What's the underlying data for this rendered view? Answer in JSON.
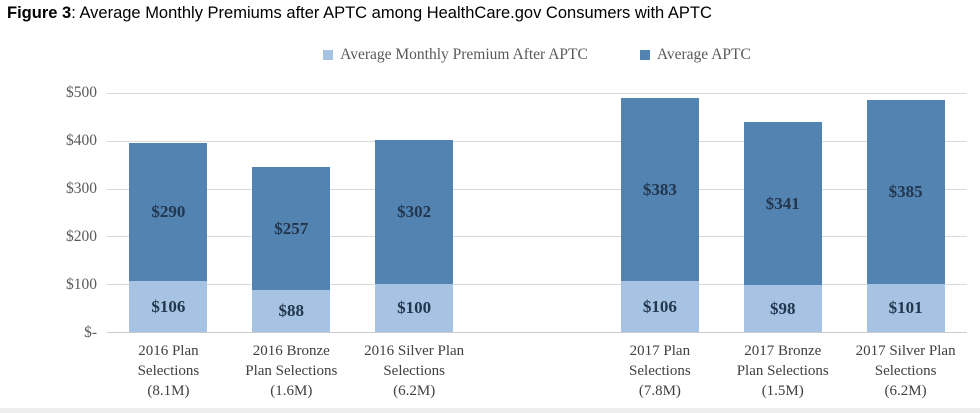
{
  "figure": {
    "label": "Figure 3",
    "title": ": Average Monthly Premiums after APTC among HealthCare.gov Consumers with APTC"
  },
  "colors": {
    "premium_after_aptc": "#a6c3e3",
    "average_aptc": "#5283b1",
    "bar_value_text": "#22364e",
    "axis_text": "#595959",
    "category_text": "#404040",
    "gridline": "#d9d9d9"
  },
  "chart_data": {
    "type": "bar",
    "stacked": true,
    "title": "Figure 3: Average Monthly Premiums after APTC among HealthCare.gov Consumers with APTC",
    "xlabel": "",
    "ylabel": "",
    "ylim": [
      0,
      500
    ],
    "grid": true,
    "legend_position": "top",
    "currency_prefix": "$",
    "gap_before_index": 3,
    "categories": [
      {
        "name": "2016 Plan Selections (8.1M)",
        "lines": [
          "2016 Plan",
          "Selections",
          "(8.1M)"
        ]
      },
      {
        "name": "2016 Bronze Plan Selections (1.6M)",
        "lines": [
          "2016 Bronze",
          "Plan Selections",
          "(1.6M)"
        ]
      },
      {
        "name": "2016 Silver Plan Selections (6.2M)",
        "lines": [
          "2016 Silver Plan",
          "Selections",
          "(6.2M)"
        ]
      },
      {
        "name": "2017 Plan Selections (7.8M)",
        "lines": [
          "2017 Plan",
          "Selections",
          "(7.8M)"
        ]
      },
      {
        "name": "2017 Bronze Plan Selections (1.5M)",
        "lines": [
          "2017 Bronze",
          "Plan Selections",
          "(1.5M)"
        ]
      },
      {
        "name": "2017 Silver Plan Selections (6.2M)",
        "lines": [
          "2017 Silver Plan",
          "Selections",
          "(6.2M)"
        ]
      }
    ],
    "series": [
      {
        "name": "Average Monthly Premium After APTC",
        "color": "#a6c3e3",
        "values": [
          106,
          88,
          100,
          106,
          98,
          101
        ],
        "labels": [
          "$106",
          "$88",
          "$100",
          "$106",
          "$98",
          "$101"
        ]
      },
      {
        "name": "Average APTC",
        "color": "#5283b1",
        "values": [
          290,
          257,
          302,
          383,
          341,
          385
        ],
        "labels": [
          "$290",
          "$257",
          "$302",
          "$383",
          "$341",
          "$385"
        ]
      }
    ],
    "y_ticks": [
      {
        "value": 500,
        "label": "$500"
      },
      {
        "value": 400,
        "label": "$400"
      },
      {
        "value": 300,
        "label": "$300"
      },
      {
        "value": 200,
        "label": "$200"
      },
      {
        "value": 100,
        "label": "$100"
      },
      {
        "value": 0,
        "label": "$-"
      }
    ]
  }
}
